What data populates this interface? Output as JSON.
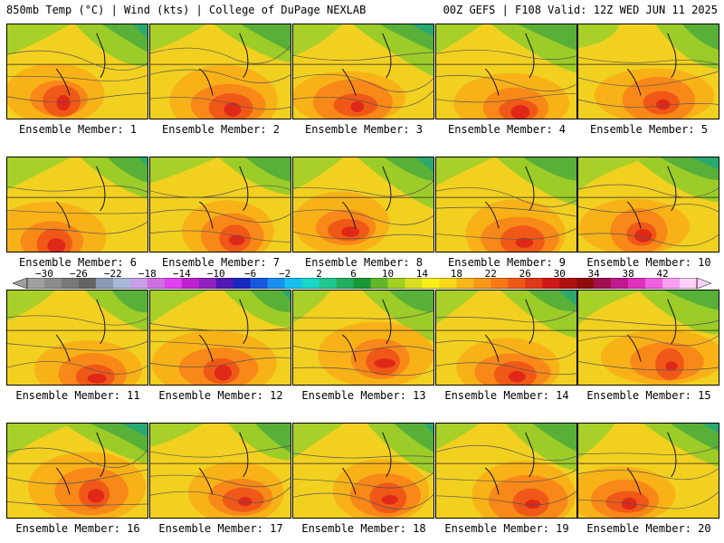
{
  "header": {
    "left_title": "850mb Temp (°C) | Wind (kts) | College of DuPage NEXLAB",
    "right_title": "00Z GEFS | F108 Valid: 12Z WED JUN 11 2025"
  },
  "panels": [
    {
      "label": "Ensemble Member: 1"
    },
    {
      "label": "Ensemble Member: 2"
    },
    {
      "label": "Ensemble Member: 3"
    },
    {
      "label": "Ensemble Member: 4"
    },
    {
      "label": "Ensemble Member: 5"
    },
    {
      "label": "Ensemble Member: 6"
    },
    {
      "label": "Ensemble Member: 7"
    },
    {
      "label": "Ensemble Member: 8"
    },
    {
      "label": "Ensemble Member: 9"
    },
    {
      "label": "Ensemble Member: 10"
    },
    {
      "label": "Ensemble Member: 11"
    },
    {
      "label": "Ensemble Member: 12"
    },
    {
      "label": "Ensemble Member: 13"
    },
    {
      "label": "Ensemble Member: 14"
    },
    {
      "label": "Ensemble Member: 15"
    },
    {
      "label": "Ensemble Member: 16"
    },
    {
      "label": "Ensemble Member: 17"
    },
    {
      "label": "Ensemble Member: 18"
    },
    {
      "label": "Ensemble Member: 19"
    },
    {
      "label": "Ensemble Member: 20"
    }
  ],
  "colorbar": {
    "tick_labels": [
      "−30",
      "−26",
      "−22",
      "−18",
      "−14",
      "−10",
      "−6",
      "−2",
      "2",
      "6",
      "10",
      "14",
      "18",
      "22",
      "26",
      "30",
      "34",
      "38",
      "42"
    ],
    "colors": [
      "#a0a0a0",
      "#8c8c8c",
      "#787878",
      "#646464",
      "#8a9ab4",
      "#a8b8d8",
      "#c8a0e8",
      "#d070e0",
      "#e040f0",
      "#c020d0",
      "#9020c0",
      "#5018b0",
      "#1828c0",
      "#1858e0",
      "#1890f0",
      "#18c0f0",
      "#18d8c8",
      "#20c890",
      "#20b060",
      "#189838",
      "#60b828",
      "#a0d020",
      "#d8e020",
      "#f8f018",
      "#f8d818",
      "#f8b818",
      "#f89818",
      "#f87818",
      "#f05818",
      "#e03818",
      "#d01818",
      "#b01010",
      "#900c0c",
      "#a01050",
      "#c01890",
      "#e030c0",
      "#f060e0",
      "#f8a0f0",
      "#fcd0f8"
    ]
  }
}
